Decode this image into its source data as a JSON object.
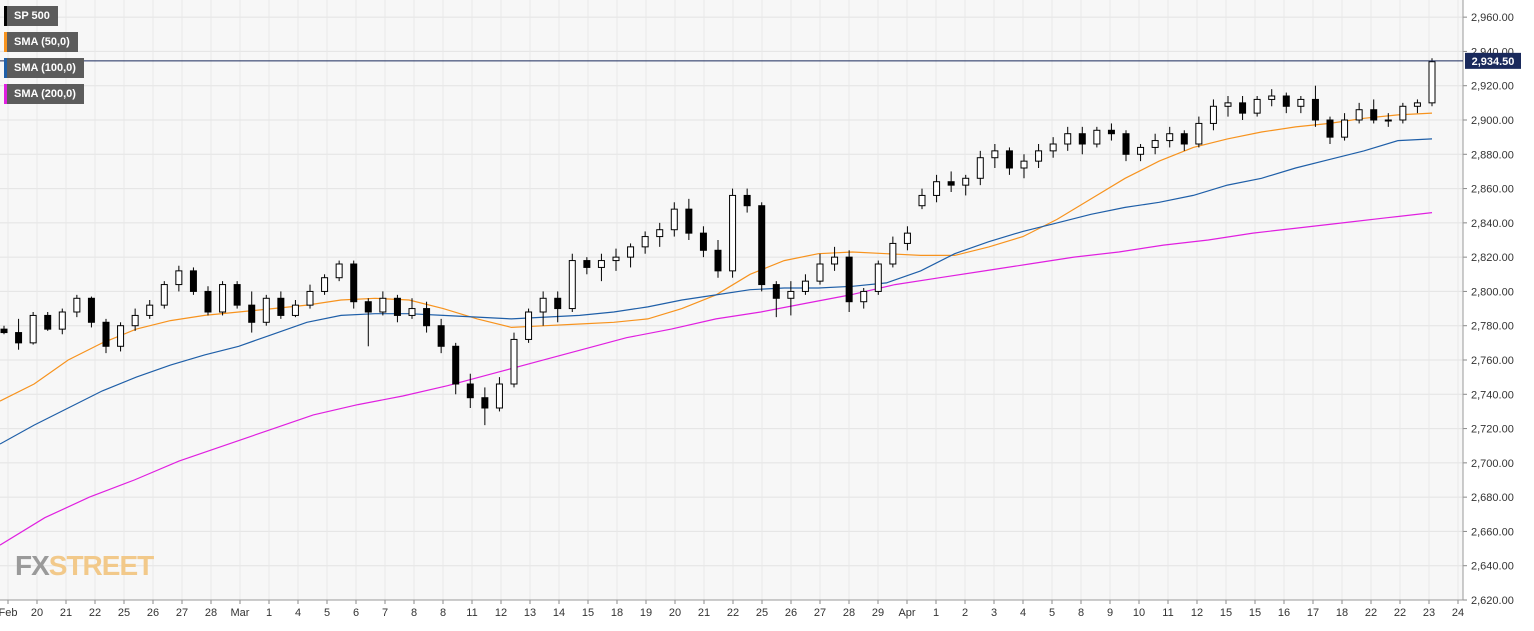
{
  "brand": {
    "logo_fx": "FX",
    "logo_street": "STREET"
  },
  "legend": [
    {
      "label": "SP 500",
      "color": "#000000"
    },
    {
      "label": "SMA (50,0)",
      "color": "#f7931e"
    },
    {
      "label": "SMA (100,0)",
      "color": "#1f5fa8"
    },
    {
      "label": "SMA (200,0)",
      "color": "#e020e0"
    }
  ],
  "chart_data": {
    "type": "line",
    "title": "",
    "ylim": [
      2620,
      2970
    ],
    "y_ticks": [
      2620,
      2640,
      2660,
      2680,
      2700,
      2720,
      2740,
      2760,
      2780,
      2800,
      2820,
      2840,
      2860,
      2880,
      2900,
      2920,
      2940,
      2960
    ],
    "y_tick_labels": [
      "2,620.00",
      "2,640.00",
      "2,660.00",
      "2,680.00",
      "2,700.00",
      "2,720.00",
      "2,740.00",
      "2,760.00",
      "2,780.00",
      "2,800.00",
      "2,820.00",
      "2,840.00",
      "2,860.00",
      "2,880.00",
      "2,900.00",
      "2,920.00",
      "2,940.00",
      "2,960.00"
    ],
    "x_ticks": [
      "Feb",
      "20",
      "21",
      "22",
      "25",
      "26",
      "27",
      "28",
      "Mar",
      "1",
      "4",
      "5",
      "6",
      "7",
      "8",
      "8",
      "11",
      "12",
      "13",
      "14",
      "15",
      "18",
      "19",
      "20",
      "21",
      "22",
      "25",
      "26",
      "27",
      "28",
      "29",
      "Apr",
      "1",
      "2",
      "3",
      "4",
      "5",
      "8",
      "9",
      "10",
      "11",
      "12",
      "15",
      "15",
      "16",
      "17",
      "18",
      "22",
      "22",
      "23",
      "24"
    ],
    "last_price": 2934.5,
    "last_price_label": "2,934.50",
    "grid": true,
    "series": [
      {
        "name": "SMA (50,0)",
        "color": "#f7931e",
        "values": [
          2736,
          2746,
          2760,
          2770,
          2778,
          2783,
          2786,
          2788,
          2790,
          2792,
          2795,
          2796,
          2795,
          2790,
          2784,
          2779,
          2780,
          2781,
          2782,
          2784,
          2790,
          2798,
          2810,
          2818,
          2822,
          2823,
          2822,
          2821,
          2821,
          2826,
          2832,
          2842,
          2854,
          2866,
          2876,
          2884,
          2889,
          2893,
          2896,
          2898,
          2901,
          2903,
          2904
        ]
      },
      {
        "name": "SMA (100,0)",
        "color": "#1f5fa8",
        "values": [
          2711,
          2722,
          2732,
          2742,
          2750,
          2757,
          2763,
          2768,
          2775,
          2782,
          2786,
          2787,
          2787,
          2786,
          2785,
          2784,
          2785,
          2786,
          2788,
          2791,
          2795,
          2798,
          2801,
          2802,
          2802,
          2803,
          2805,
          2812,
          2822,
          2829,
          2835,
          2840,
          2845,
          2849,
          2852,
          2856,
          2862,
          2866,
          2872,
          2877,
          2882,
          2888,
          2889
        ]
      },
      {
        "name": "SMA (200,0)",
        "color": "#e020e0",
        "values": [
          2652,
          2668,
          2680,
          2690,
          2701,
          2710,
          2719,
          2728,
          2734,
          2739,
          2745,
          2752,
          2759,
          2766,
          2773,
          2778,
          2784,
          2788,
          2793,
          2798,
          2804,
          2808,
          2812,
          2816,
          2820,
          2823,
          2827,
          2830,
          2834,
          2837,
          2840,
          2843,
          2846
        ]
      }
    ],
    "candles": [
      [
        2778,
        2780,
        2775,
        2776
      ],
      [
        2776,
        2784,
        2766,
        2770
      ],
      [
        2770,
        2788,
        2769,
        2786
      ],
      [
        2786,
        2788,
        2777,
        2778
      ],
      [
        2778,
        2790,
        2775,
        2788
      ],
      [
        2788,
        2798,
        2785,
        2796
      ],
      [
        2796,
        2797,
        2779,
        2782
      ],
      [
        2782,
        2784,
        2764,
        2768
      ],
      [
        2768,
        2782,
        2765,
        2780
      ],
      [
        2780,
        2790,
        2777,
        2786
      ],
      [
        2786,
        2795,
        2784,
        2792
      ],
      [
        2792,
        2806,
        2790,
        2804
      ],
      [
        2804,
        2815,
        2800,
        2812
      ],
      [
        2812,
        2814,
        2798,
        2800
      ],
      [
        2800,
        2803,
        2786,
        2788
      ],
      [
        2788,
        2806,
        2786,
        2804
      ],
      [
        2804,
        2806,
        2790,
        2792
      ],
      [
        2792,
        2800,
        2776,
        2782
      ],
      [
        2782,
        2798,
        2780,
        2796
      ],
      [
        2796,
        2800,
        2784,
        2786
      ],
      [
        2786,
        2795,
        2785,
        2792
      ],
      [
        2792,
        2804,
        2790,
        2800
      ],
      [
        2800,
        2810,
        2798,
        2808
      ],
      [
        2808,
        2818,
        2806,
        2816
      ],
      [
        2816,
        2818,
        2790,
        2794
      ],
      [
        2794,
        2796,
        2768,
        2788
      ],
      [
        2788,
        2800,
        2786,
        2796
      ],
      [
        2796,
        2798,
        2782,
        2786
      ],
      [
        2786,
        2796,
        2784,
        2790
      ],
      [
        2790,
        2794,
        2776,
        2780
      ],
      [
        2780,
        2784,
        2764,
        2768
      ],
      [
        2768,
        2770,
        2740,
        2746
      ],
      [
        2746,
        2752,
        2732,
        2738
      ],
      [
        2738,
        2744,
        2722,
        2732
      ],
      [
        2732,
        2750,
        2730,
        2746
      ],
      [
        2746,
        2776,
        2744,
        2772
      ],
      [
        2772,
        2790,
        2770,
        2788
      ],
      [
        2788,
        2800,
        2780,
        2796
      ],
      [
        2796,
        2800,
        2782,
        2790
      ],
      [
        2790,
        2822,
        2788,
        2818
      ],
      [
        2818,
        2820,
        2810,
        2814
      ],
      [
        2814,
        2822,
        2806,
        2818
      ],
      [
        2818,
        2825,
        2812,
        2820
      ],
      [
        2820,
        2828,
        2814,
        2826
      ],
      [
        2826,
        2835,
        2822,
        2832
      ],
      [
        2832,
        2840,
        2826,
        2836
      ],
      [
        2836,
        2852,
        2832,
        2848
      ],
      [
        2848,
        2854,
        2830,
        2834
      ],
      [
        2834,
        2838,
        2820,
        2824
      ],
      [
        2824,
        2830,
        2808,
        2812
      ],
      [
        2812,
        2860,
        2808,
        2856
      ],
      [
        2856,
        2860,
        2846,
        2850
      ],
      [
        2850,
        2852,
        2800,
        2804
      ],
      [
        2804,
        2806,
        2785,
        2796
      ],
      [
        2796,
        2806,
        2786,
        2800
      ],
      [
        2800,
        2810,
        2798,
        2806
      ],
      [
        2806,
        2822,
        2804,
        2816
      ],
      [
        2816,
        2826,
        2812,
        2820
      ],
      [
        2820,
        2824,
        2788,
        2794
      ],
      [
        2794,
        2802,
        2790,
        2800
      ],
      [
        2800,
        2818,
        2798,
        2816
      ],
      [
        2816,
        2832,
        2814,
        2828
      ],
      [
        2828,
        2838,
        2824,
        2834
      ],
      [
        2850,
        2860,
        2848,
        2856
      ],
      [
        2856,
        2868,
        2852,
        2864
      ],
      [
        2864,
        2870,
        2858,
        2862
      ],
      [
        2862,
        2868,
        2856,
        2866
      ],
      [
        2866,
        2882,
        2862,
        2878
      ],
      [
        2878,
        2886,
        2872,
        2882
      ],
      [
        2882,
        2884,
        2868,
        2872
      ],
      [
        2872,
        2880,
        2866,
        2876
      ],
      [
        2876,
        2886,
        2872,
        2882
      ],
      [
        2882,
        2890,
        2878,
        2886
      ],
      [
        2886,
        2896,
        2882,
        2892
      ],
      [
        2892,
        2896,
        2880,
        2886
      ],
      [
        2886,
        2896,
        2884,
        2894
      ],
      [
        2894,
        2898,
        2888,
        2892
      ],
      [
        2892,
        2894,
        2876,
        2880
      ],
      [
        2880,
        2886,
        2876,
        2884
      ],
      [
        2884,
        2892,
        2880,
        2888
      ],
      [
        2888,
        2896,
        2884,
        2892
      ],
      [
        2892,
        2894,
        2882,
        2886
      ],
      [
        2886,
        2902,
        2884,
        2898
      ],
      [
        2898,
        2912,
        2894,
        2908
      ],
      [
        2908,
        2914,
        2902,
        2910
      ],
      [
        2910,
        2914,
        2900,
        2904
      ],
      [
        2904,
        2914,
        2902,
        2912
      ],
      [
        2912,
        2918,
        2908,
        2914
      ],
      [
        2914,
        2916,
        2904,
        2908
      ],
      [
        2908,
        2914,
        2904,
        2912
      ],
      [
        2912,
        2920,
        2896,
        2900
      ],
      [
        2900,
        2902,
        2886,
        2890
      ],
      [
        2890,
        2904,
        2888,
        2900
      ],
      [
        2900,
        2910,
        2898,
        2906
      ],
      [
        2906,
        2912,
        2898,
        2900
      ],
      [
        2900,
        2904,
        2896,
        2900
      ],
      [
        2900,
        2910,
        2898,
        2908
      ],
      [
        2908,
        2912,
        2904,
        2910
      ],
      [
        2910,
        2936,
        2908,
        2934
      ]
    ]
  }
}
